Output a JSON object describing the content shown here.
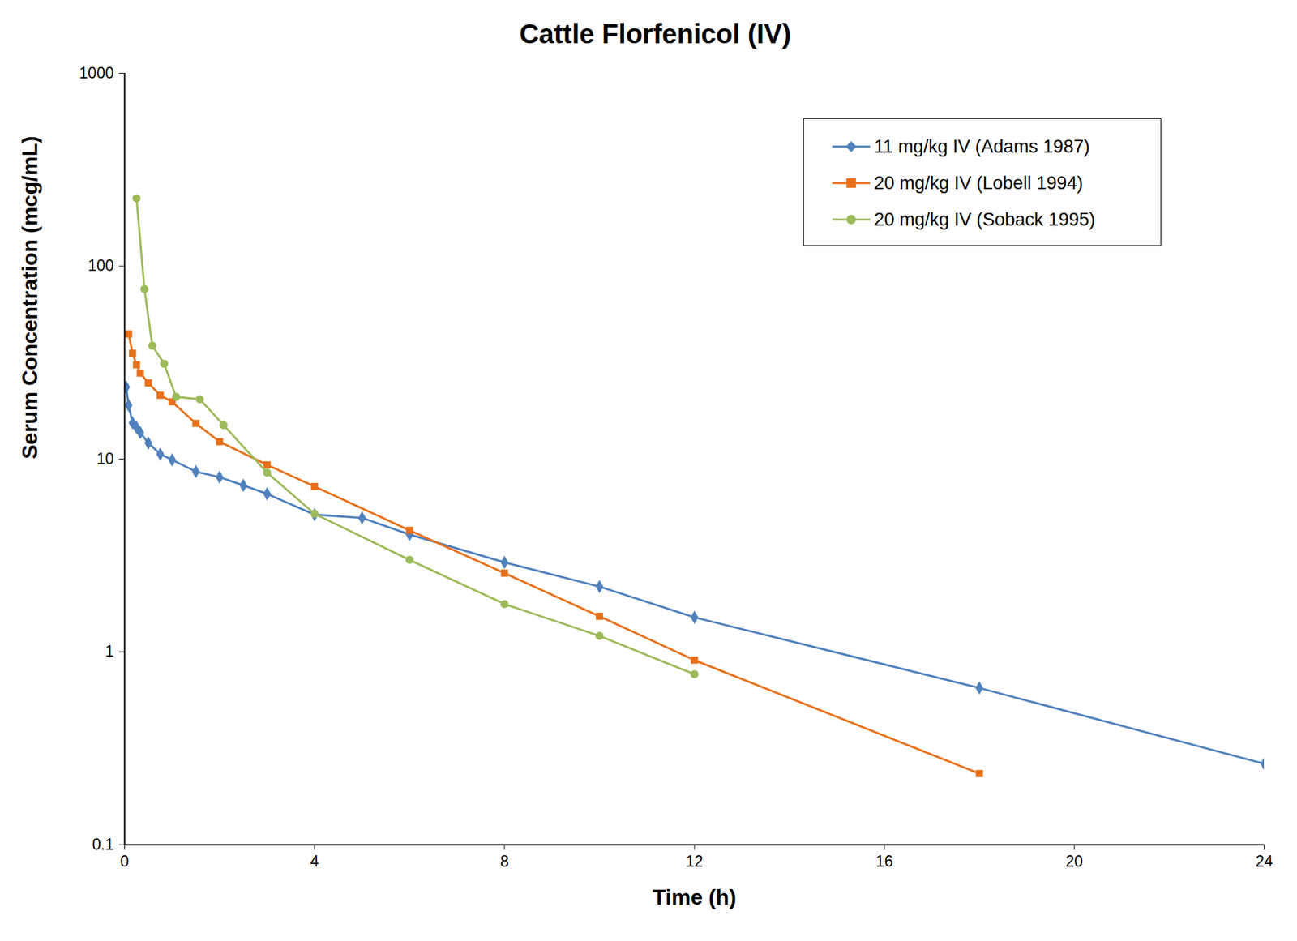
{
  "chart_data": {
    "type": "line",
    "title": "Cattle Florfenicol (IV)",
    "x_label": "Time (h)",
    "y_label": "Serum Concentration (mcg/mL)",
    "log": "y",
    "xlim": [
      0,
      24
    ],
    "xticks": [
      0,
      4,
      8,
      12,
      16,
      20,
      24
    ],
    "ylim": [
      0.1,
      1000
    ],
    "yticks": [
      0.1,
      1,
      10,
      100,
      1000
    ],
    "grid": false,
    "legend": "top-right",
    "series": [
      {
        "name": "11 mg/kg IV (Adams 1987)",
        "color": "#4f81bd",
        "marker": "diamond",
        "x": [
          0.033,
          0.083,
          0.167,
          0.25,
          0.33,
          0.5,
          0.75,
          1,
          1.5,
          2,
          2.5,
          3,
          4,
          5,
          6,
          8,
          10,
          12,
          18,
          24
        ],
        "values": [
          23.6,
          19,
          15.4,
          14.6,
          13.7,
          12.1,
          10.6,
          9.9,
          8.6,
          8.05,
          7.3,
          6.6,
          5.15,
          4.95,
          4.06,
          2.91,
          2.18,
          1.51,
          0.65,
          0.263
        ]
      },
      {
        "name": "20 mg/kg IV (Lobell 1994)",
        "color": "#e8701a",
        "marker": "square",
        "x": [
          0.083,
          0.167,
          0.25,
          0.33,
          0.5,
          0.75,
          1,
          1.5,
          2,
          3,
          4,
          6,
          8,
          10,
          12,
          18
        ],
        "values": [
          44.5,
          35.4,
          30.8,
          27.9,
          24.8,
          21.4,
          19.8,
          15.3,
          12.3,
          9.33,
          7.2,
          4.27,
          2.56,
          1.53,
          0.906,
          0.234
        ]
      },
      {
        "name": "20 mg/kg IV (Soback 1995)",
        "color": "#9bbb59",
        "marker": "circle",
        "x": [
          0.25,
          0.417,
          0.583,
          0.833,
          1.083,
          1.583,
          2.083,
          3,
          4,
          6,
          8,
          10,
          12
        ],
        "values": [
          225,
          76,
          38.7,
          31.2,
          21,
          20.4,
          15,
          8.5,
          5.2,
          3.0,
          1.77,
          1.21,
          0.766
        ]
      }
    ]
  }
}
